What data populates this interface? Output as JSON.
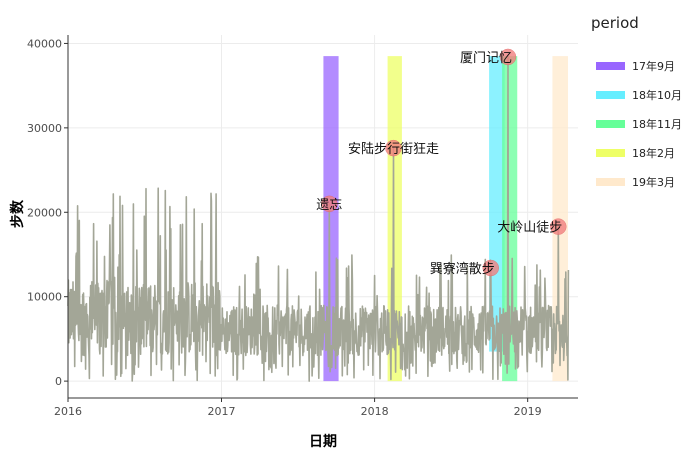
{
  "chart_data": {
    "type": "line",
    "xlabel": "日期",
    "ylabel": "步数",
    "xlim": [
      "2016-01-01",
      "2019-05-01"
    ],
    "ylim": [
      -2000,
      41000
    ],
    "x_ticks": [
      "2016",
      "2017",
      "2018",
      "2019"
    ],
    "y_ticks": [
      0,
      10000,
      20000,
      30000,
      40000
    ],
    "grid": true,
    "line_color": "#a3a697",
    "legend": {
      "title": "period",
      "placement": "right",
      "entries": [
        {
          "name": "17年9月",
          "color": "#9966ff"
        },
        {
          "name": "18年10月",
          "color": "#66eeff"
        },
        {
          "name": "18年11月",
          "color": "#66ff99"
        },
        {
          "name": "18年2月",
          "color": "#eeff66"
        },
        {
          "name": "19年3月",
          "color": "#ffe9cc"
        }
      ]
    },
    "periods": [
      {
        "name": "17年9月",
        "start": "2017-09-01",
        "end": "2017-09-30",
        "top": 38500,
        "bottom": 0
      },
      {
        "name": "18年2月",
        "start": "2018-02-01",
        "end": "2018-02-28",
        "top": 38500,
        "bottom": 0
      },
      {
        "name": "18年10月",
        "start": "2018-10-01",
        "end": "2018-10-31",
        "top": 38500,
        "bottom": 3500
      },
      {
        "name": "18年11月",
        "start": "2018-11-01",
        "end": "2018-11-30",
        "top": 38500,
        "bottom": 0
      },
      {
        "name": "19年3月",
        "start": "2019-03-01",
        "end": "2019-03-31",
        "top": 38500,
        "bottom": 0
      }
    ],
    "annotations": [
      {
        "date": "2017-09-15",
        "value": 21000,
        "label": "遗忘",
        "align": "middle"
      },
      {
        "date": "2018-02-15",
        "value": 27600,
        "label": "安陆步行街狂走",
        "align": "middle"
      },
      {
        "date": "2018-11-15",
        "value": 38400,
        "label": "厦门记忆",
        "align": "end"
      },
      {
        "date": "2018-10-05",
        "value": 13400,
        "label": "巽寮湾散步",
        "align": "end"
      },
      {
        "date": "2019-03-15",
        "value": 18300,
        "label": "大岭山徒步",
        "align": "end"
      }
    ]
  }
}
